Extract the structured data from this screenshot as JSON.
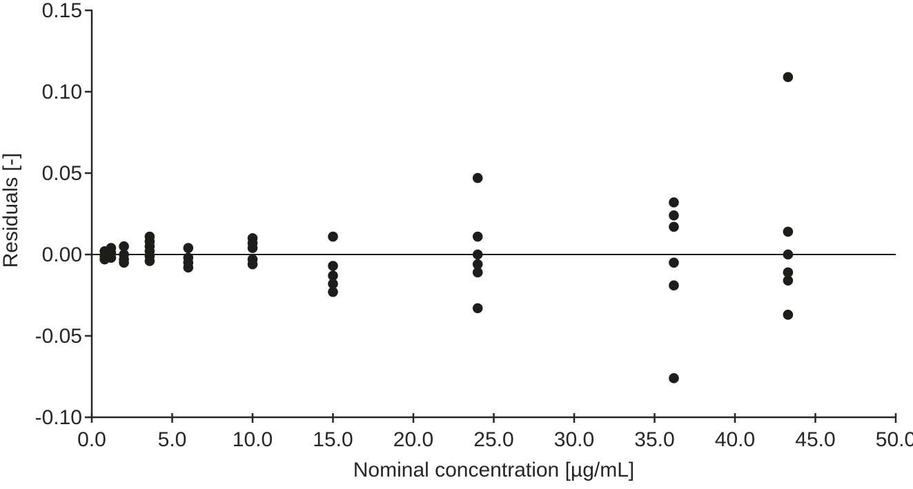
{
  "figure": {
    "x_axis_title": "Nominal concentration [µg/mL]",
    "y_axis_title": "Residuals [-]"
  },
  "style": {
    "background_color": "#ffffff",
    "point_color": "#1d1d1b",
    "axis_color": "#262626",
    "text_color": "#262626",
    "zero_line_color": "#1a1a1a"
  },
  "chart_data": {
    "type": "scatter",
    "title": "",
    "xlabel": "Nominal concentration [µg/mL]",
    "ylabel": "Residuals [-]",
    "xlim": [
      0.0,
      50.0
    ],
    "ylim": [
      -0.1,
      0.15
    ],
    "x_tick_values": [
      0,
      5,
      10,
      15,
      20,
      25,
      30,
      35,
      40,
      45,
      50
    ],
    "x_tick_labels": [
      "0.0",
      "5.0",
      "10.0",
      "15.0",
      "20.0",
      "25.0",
      "30.0",
      "35.0",
      "40.0",
      "45.0",
      "50.0"
    ],
    "y_tick_values": [
      -0.1,
      -0.05,
      0.0,
      0.05,
      0.1,
      0.15
    ],
    "y_tick_labels": [
      "-0.10",
      "-0.05",
      "0.00",
      "0.05",
      "0.10",
      "0.15"
    ],
    "grid": false,
    "legend": false,
    "zero_line": 0.0,
    "marker": "filled-circle",
    "marker_radius_px": 7.3,
    "series": [
      {
        "name": "Residuals",
        "color": "#1d1d1b",
        "points": [
          [
            0.8,
            0.002
          ],
          [
            0.8,
            -0.001
          ],
          [
            0.8,
            -0.003
          ],
          [
            1.2,
            0.004
          ],
          [
            1.2,
            0.001
          ],
          [
            1.2,
            -0.002
          ],
          [
            2.0,
            0.005
          ],
          [
            2.0,
            0.0
          ],
          [
            2.0,
            -0.003
          ],
          [
            2.0,
            -0.005
          ],
          [
            3.6,
            0.011
          ],
          [
            3.6,
            0.008
          ],
          [
            3.6,
            0.005
          ],
          [
            3.6,
            0.002
          ],
          [
            3.6,
            -0.001
          ],
          [
            3.6,
            -0.004
          ],
          [
            6.0,
            0.004
          ],
          [
            6.0,
            -0.002
          ],
          [
            6.0,
            -0.005
          ],
          [
            6.0,
            -0.008
          ],
          [
            10.0,
            0.01
          ],
          [
            10.0,
            0.007
          ],
          [
            10.0,
            0.004
          ],
          [
            10.0,
            -0.003
          ],
          [
            10.0,
            -0.006
          ],
          [
            15.0,
            0.011
          ],
          [
            15.0,
            -0.007
          ],
          [
            15.0,
            -0.013
          ],
          [
            15.0,
            -0.018
          ],
          [
            15.0,
            -0.023
          ],
          [
            24.0,
            0.047
          ],
          [
            24.0,
            0.011
          ],
          [
            24.0,
            0.0
          ],
          [
            24.0,
            -0.006
          ],
          [
            24.0,
            -0.011
          ],
          [
            24.0,
            -0.033
          ],
          [
            36.2,
            0.032
          ],
          [
            36.2,
            0.024
          ],
          [
            36.2,
            0.017
          ],
          [
            36.2,
            -0.005
          ],
          [
            36.2,
            -0.019
          ],
          [
            36.2,
            -0.076
          ],
          [
            43.3,
            0.109
          ],
          [
            43.3,
            0.014
          ],
          [
            43.3,
            0.0
          ],
          [
            43.3,
            -0.011
          ],
          [
            43.3,
            -0.016
          ],
          [
            43.3,
            -0.037
          ]
        ]
      }
    ]
  }
}
